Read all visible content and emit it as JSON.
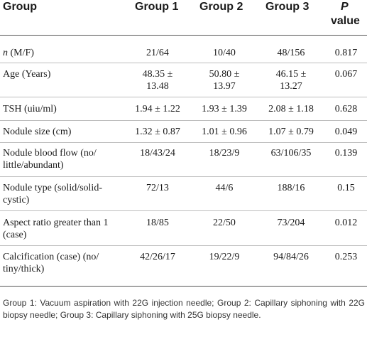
{
  "header": {
    "group": "Group",
    "group1": "Group 1",
    "group2": "Group 2",
    "group3": "Group 3",
    "p_line1": "P",
    "p_line2": "value"
  },
  "rows": [
    {
      "label_italic": "n",
      "label": " (M/F)",
      "g1": "21/64",
      "g2": "10/40",
      "g3": "48/156",
      "p": "0.817"
    },
    {
      "label": "Age (Years)",
      "g1_l1": "48.35 ±",
      "g1_l2": "13.48",
      "g2_l1": "50.80 ±",
      "g2_l2": "13.97",
      "g3_l1": "46.15 ±",
      "g3_l2": "13.27",
      "p": "0.067"
    },
    {
      "label": "TSH (uiu/ml)",
      "g1": "1.94 ± 1.22",
      "g2": "1.93 ± 1.39",
      "g3": "2.08 ± 1.18",
      "p": "0.628"
    },
    {
      "label": "Nodule size (cm)",
      "g1": "1.32 ± 0.87",
      "g2": "1.01 ± 0.96",
      "g3": "1.07 ± 0.79",
      "p": "0.049"
    },
    {
      "label_l1": "Nodule blood flow (no/",
      "label_l2": "little/abundant)",
      "g1": "18/43/24",
      "g2": "18/23/9",
      "g3": "63/106/35",
      "p": "0.139"
    },
    {
      "label_l1": "Nodule type (solid/solid-",
      "label_l2": "cystic)",
      "g1": "72/13",
      "g2": "44/6",
      "g3": "188/16",
      "p": "0.15"
    },
    {
      "label_l1": "Aspect ratio greater than 1",
      "label_l2": "(case)",
      "g1": "18/85",
      "g2": "22/50",
      "g3": "73/204",
      "p": "0.012"
    },
    {
      "label_l1": "Calcification (case) (no/",
      "label_l2": "tiny/thick)",
      "g1": "42/26/17",
      "g2": "19/22/9",
      "g3": "94/84/26",
      "p": "0.253"
    }
  ],
  "footnote": "Group 1: Vacuum aspiration with 22G injection needle; Group 2: Capillary siphoning with 22G biopsy needle; Group 3: Capillary siphoning with 25G biopsy needle."
}
